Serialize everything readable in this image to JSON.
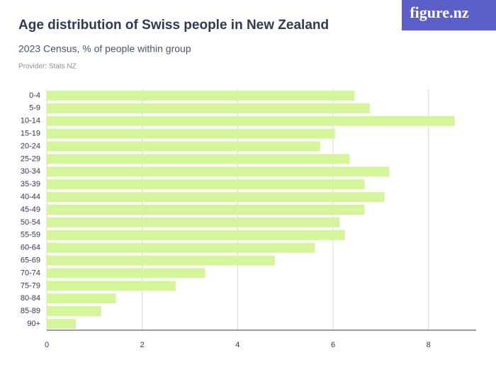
{
  "logo": "figure.nz",
  "chart_data": {
    "type": "bar",
    "orientation": "horizontal",
    "title": "Age distribution of Swiss people in New Zealand",
    "subtitle": "2023 Census, % of people within group",
    "provider": "Provider: Stats NZ",
    "categories": [
      "0-4",
      "5-9",
      "10-14",
      "15-19",
      "20-24",
      "25-29",
      "30-34",
      "35-39",
      "40-44",
      "45-49",
      "50-54",
      "55-59",
      "60-64",
      "65-69",
      "70-74",
      "75-79",
      "80-84",
      "85-89",
      "90+"
    ],
    "values": [
      6.45,
      6.77,
      8.55,
      6.04,
      5.73,
      6.35,
      7.18,
      6.66,
      7.08,
      6.66,
      6.14,
      6.25,
      5.62,
      4.78,
      3.32,
      2.7,
      1.45,
      1.14,
      0.61
    ],
    "color": "#d5f59a",
    "xlim": [
      0,
      9
    ],
    "xticks": [
      0,
      2,
      4,
      6,
      8
    ],
    "grid": true
  }
}
